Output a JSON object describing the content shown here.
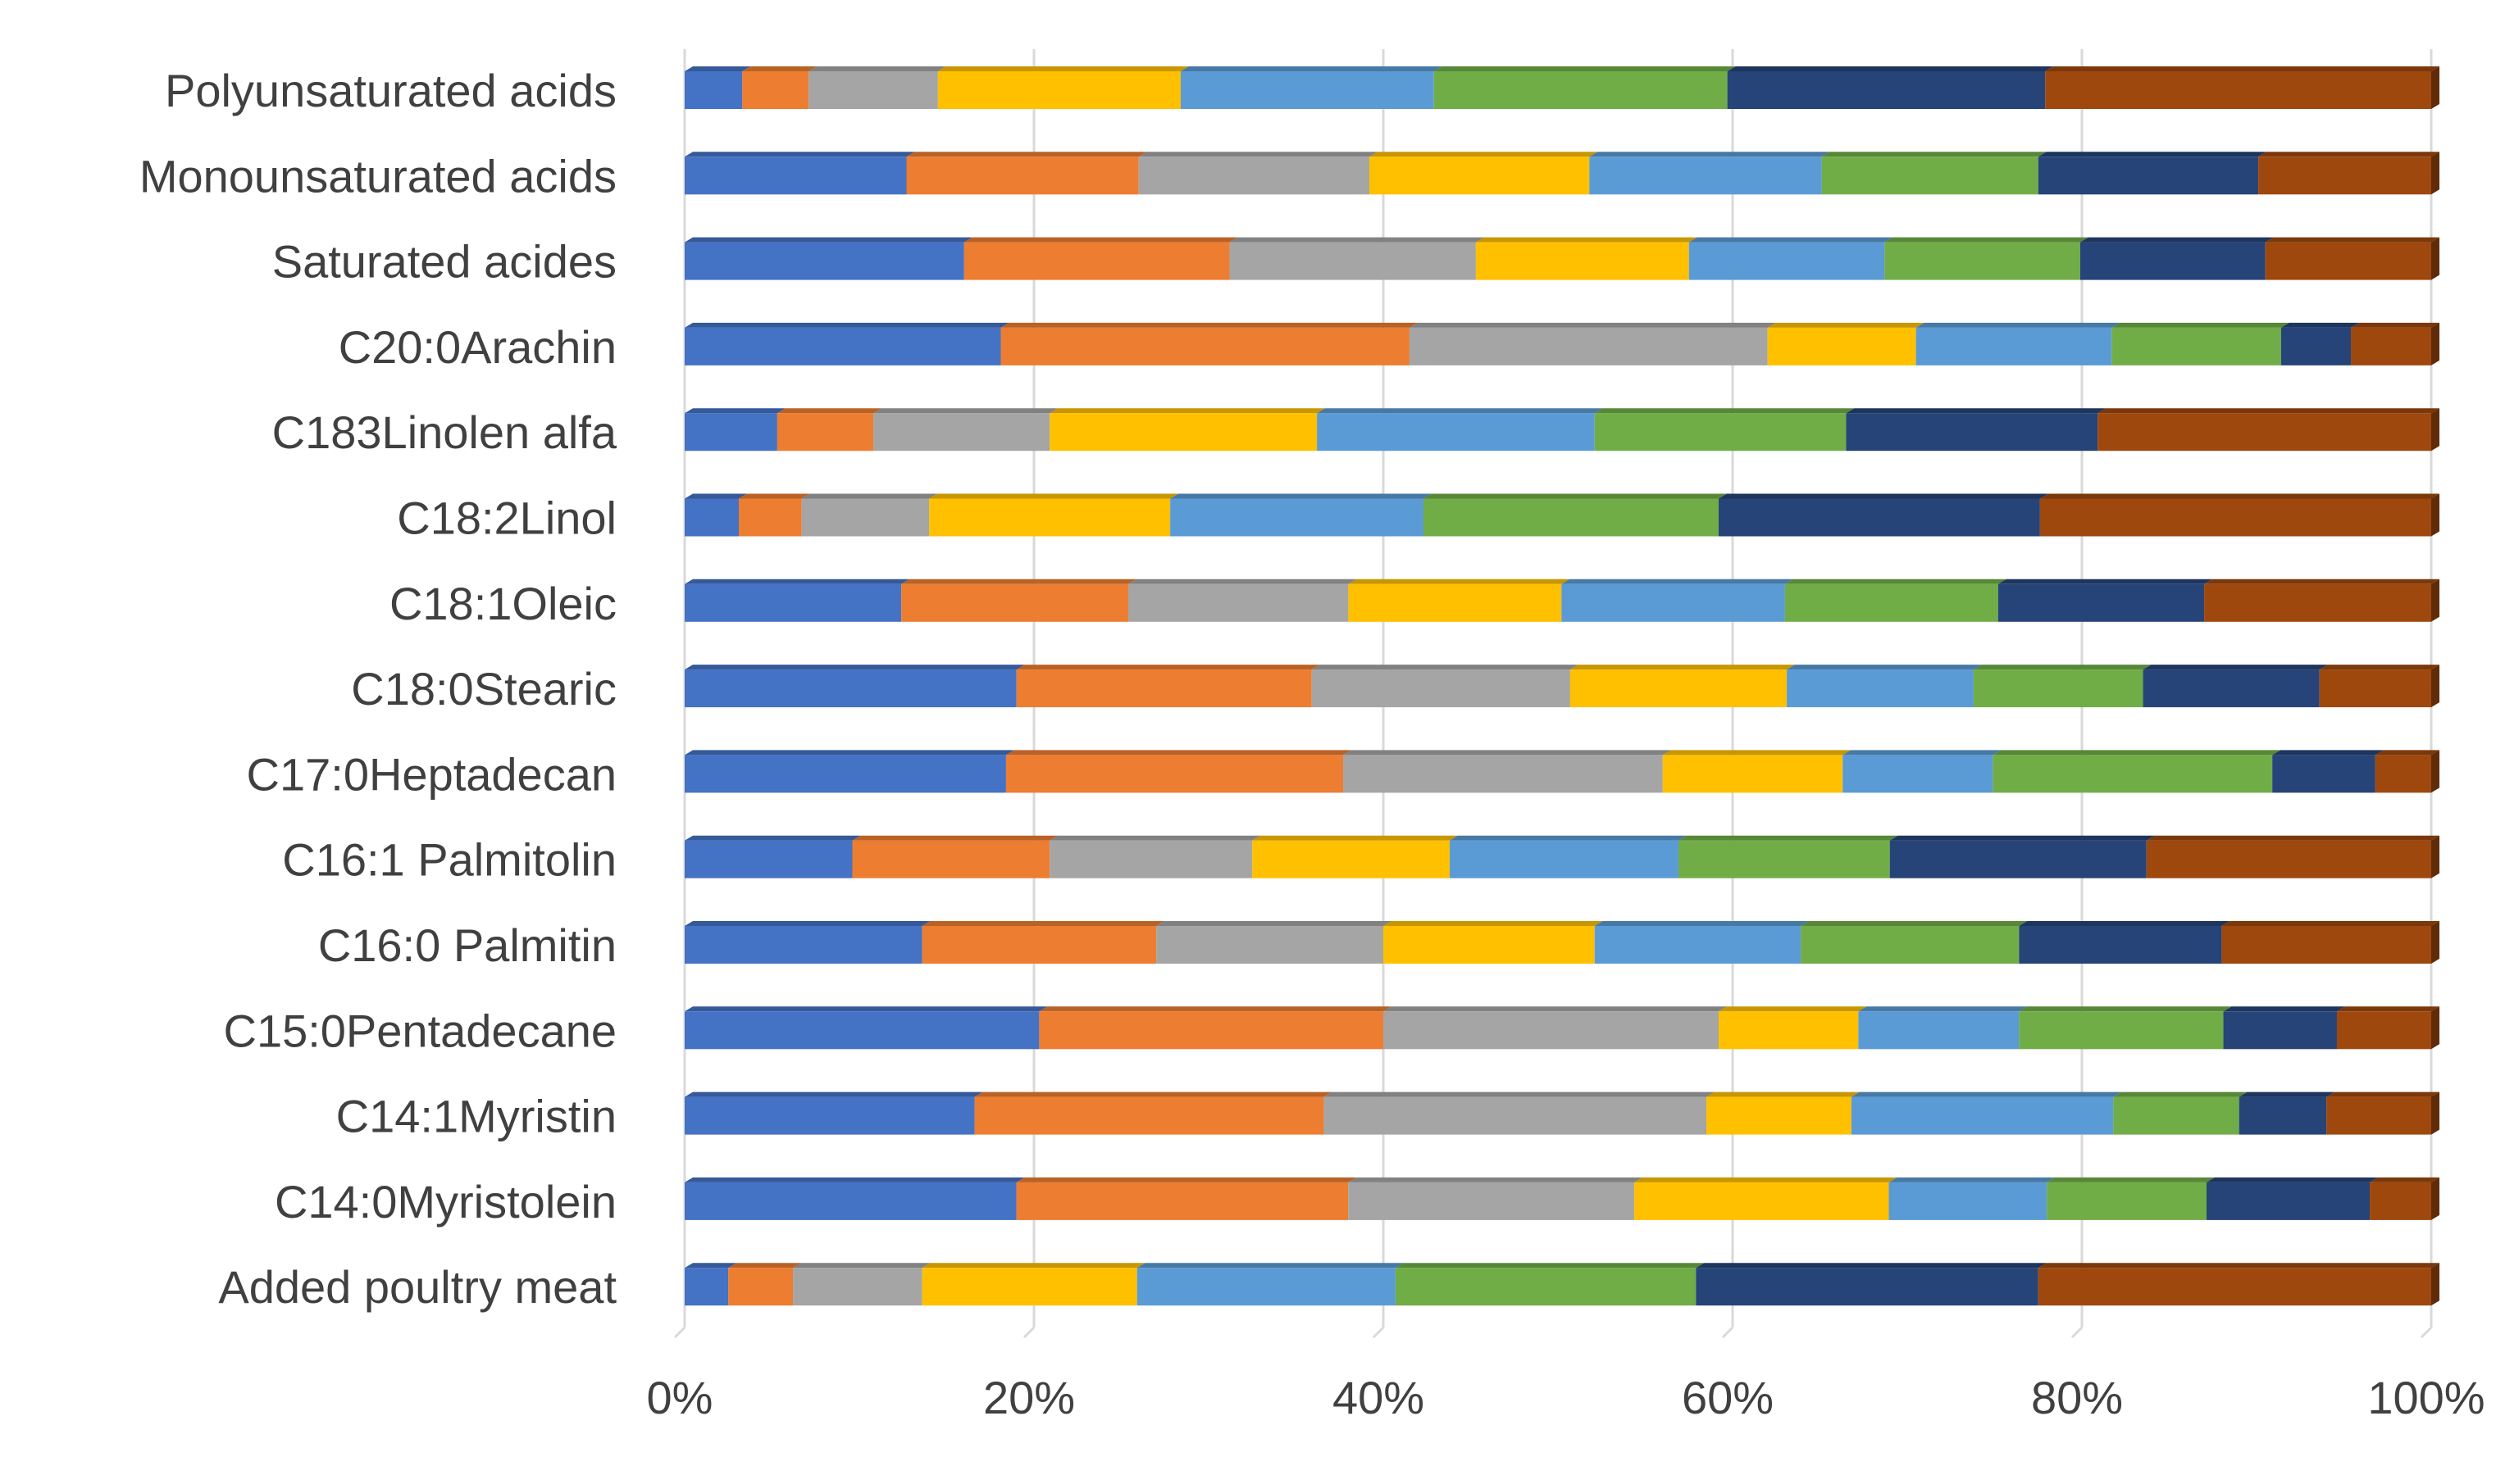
{
  "chart_data": {
    "type": "bar",
    "orientation": "horizontal",
    "stacked": "percent",
    "title": "",
    "xlabel": "",
    "ylabel": "",
    "xlim": [
      0,
      100
    ],
    "x_ticks": [
      "0%",
      "20%",
      "40%",
      "60%",
      "80%",
      "100%"
    ],
    "grid": "vertical",
    "legend": "none",
    "categories": [
      "Polyunsaturated acids",
      "Monounsaturated acids",
      "Saturated acides",
      "C20:0Arachin",
      "C183Linolen alfa",
      "C18:2Linol",
      "C18:1Oleic",
      "C18:0Stearic",
      "C17:0Heptadecan",
      "C16:1 Palmitolin",
      "C16:0 Palmitin",
      "C15:0Pentadecane",
      "C14:1Myristin",
      "C14:0Myristolein",
      "Added poultry meat"
    ],
    "series_colors": [
      "#4472C4",
      "#ED7D31",
      "#A5A5A5",
      "#FFC000",
      "#5B9BD5",
      "#70AD47",
      "#264478",
      "#9E480E"
    ],
    "rows": [
      [
        3.3,
        3.8,
        7.4,
        13.9,
        14.5,
        16.8,
        18.2,
        22.1
      ],
      [
        12.7,
        13.3,
        13.2,
        12.6,
        13.3,
        12.4,
        12.6,
        9.9
      ],
      [
        16.0,
        15.2,
        14.1,
        12.2,
        11.2,
        11.2,
        10.6,
        9.5
      ],
      [
        18.1,
        23.4,
        20.5,
        8.5,
        11.2,
        9.7,
        4.0,
        4.6
      ],
      [
        5.3,
        5.5,
        10.1,
        15.3,
        15.9,
        14.4,
        14.4,
        19.1
      ],
      [
        3.1,
        3.6,
        7.3,
        13.8,
        14.5,
        16.9,
        18.4,
        22.4
      ],
      [
        12.4,
        13.0,
        12.6,
        12.2,
        12.8,
        12.2,
        11.8,
        13.0
      ],
      [
        19.0,
        16.9,
        14.8,
        12.4,
        10.7,
        9.7,
        10.1,
        6.4
      ],
      [
        18.4,
        19.3,
        18.3,
        10.3,
        8.6,
        16.0,
        5.9,
        3.2
      ],
      [
        9.6,
        11.3,
        11.6,
        11.3,
        13.1,
        12.1,
        14.7,
        16.3
      ],
      [
        13.6,
        13.4,
        13.0,
        12.1,
        11.8,
        12.5,
        11.6,
        12.0
      ],
      [
        20.3,
        19.7,
        19.2,
        8.0,
        9.2,
        11.7,
        6.5,
        5.4
      ],
      [
        16.6,
        20.0,
        21.9,
        8.3,
        15.0,
        7.2,
        5.0,
        6.0
      ],
      [
        18.9,
        18.9,
        16.3,
        14.5,
        9.0,
        9.1,
        9.3,
        3.5
      ],
      [
        2.5,
        3.7,
        7.4,
        12.3,
        14.8,
        17.2,
        19.6,
        22.5
      ]
    ]
  }
}
